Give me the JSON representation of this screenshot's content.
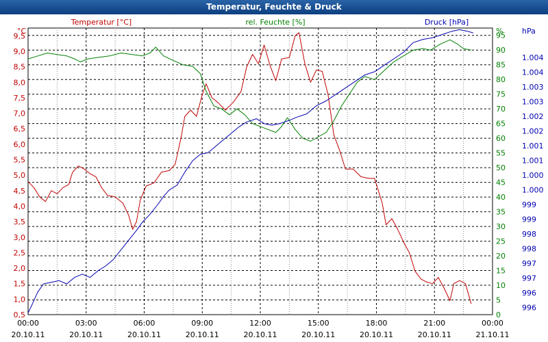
{
  "window": {
    "title": "Temperatur, Feuchte & Druck"
  },
  "chart_data": {
    "type": "line",
    "title": "Temperatur, Feuchte & Druck",
    "colors": {
      "temperature": "#c00000",
      "humidity": "#008000",
      "pressure": "#0000b0"
    },
    "x_ticks": [
      {
        "time": "00:00",
        "date": "20.10.11"
      },
      {
        "time": "03:00",
        "date": "20.10.11"
      },
      {
        "time": "06:00",
        "date": "20.10.11"
      },
      {
        "time": "09:00",
        "date": "20.10.11"
      },
      {
        "time": "12:00",
        "date": "20.10.11"
      },
      {
        "time": "15:00",
        "date": "20.10.11"
      },
      {
        "time": "18:00",
        "date": "20.10.11"
      },
      {
        "time": "21:00",
        "date": "20.10.11"
      },
      {
        "time": "00:00",
        "date": "21.10.11"
      }
    ],
    "xlim_hours": [
      0,
      24
    ],
    "axes": {
      "temperature": {
        "unit": "°C",
        "legend": "Temperatur [°C]",
        "ylim": [
          0.5,
          9.75
        ],
        "ticks": [
          "0,5",
          "1,0",
          "1,5",
          "2,0",
          "2,5",
          "3,0",
          "3,5",
          "4,0",
          "4,5",
          "5,0",
          "5,5",
          "6,0",
          "6,5",
          "7,0",
          "7,5",
          "8,0",
          "8,5",
          "9,0",
          "9,5"
        ]
      },
      "humidity": {
        "unit": "%",
        "legend": "rel. Feuchte [%]",
        "ylim": [
          0,
          97.5
        ],
        "ticks": [
          "0",
          "5",
          "10",
          "15",
          "20",
          "25",
          "30",
          "35",
          "40",
          "45",
          "50",
          "55",
          "60",
          "65",
          "70",
          "75",
          "80",
          "85",
          "90",
          "95"
        ]
      },
      "pressure": {
        "unit": "hPa",
        "legend": "Druck [hPa]",
        "ylim": [
          995.9,
          1004.75
        ],
        "ticks": [
          "996",
          "996",
          "997",
          "997",
          "998",
          "998",
          "999",
          "999",
          "1.000",
          "1.000",
          "1.001",
          "1.001",
          "1.002",
          "1.002",
          "1.003",
          "1.003",
          "1.004",
          "1.004"
        ]
      }
    },
    "series": [
      {
        "name": "Temperatur",
        "axis": "temperature",
        "color": "#c00000",
        "points": [
          [
            0,
            4.8
          ],
          [
            0.3,
            4.6
          ],
          [
            0.6,
            4.3
          ],
          [
            0.9,
            4.15
          ],
          [
            1.2,
            4.5
          ],
          [
            1.5,
            4.4
          ],
          [
            1.8,
            4.6
          ],
          [
            2.1,
            4.7
          ],
          [
            2.3,
            5.1
          ],
          [
            2.6,
            5.3
          ],
          [
            2.9,
            5.2
          ],
          [
            3.2,
            5.05
          ],
          [
            3.5,
            4.95
          ],
          [
            3.8,
            4.6
          ],
          [
            4.1,
            4.35
          ],
          [
            4.5,
            4.3
          ],
          [
            4.9,
            4.1
          ],
          [
            5.2,
            3.7
          ],
          [
            5.4,
            3.25
          ],
          [
            5.6,
            3.5
          ],
          [
            5.8,
            4.2
          ],
          [
            6.1,
            4.65
          ],
          [
            6.5,
            4.75
          ],
          [
            6.9,
            5.1
          ],
          [
            7.3,
            5.15
          ],
          [
            7.6,
            5.35
          ],
          [
            7.9,
            6.2
          ],
          [
            8.1,
            6.9
          ],
          [
            8.4,
            7.1
          ],
          [
            8.7,
            6.9
          ],
          [
            9.0,
            7.6
          ],
          [
            9.2,
            7.95
          ],
          [
            9.5,
            7.5
          ],
          [
            9.8,
            7.35
          ],
          [
            10.2,
            7.1
          ],
          [
            10.6,
            7.35
          ],
          [
            11.0,
            7.7
          ],
          [
            11.3,
            8.5
          ],
          [
            11.6,
            8.9
          ],
          [
            11.9,
            8.6
          ],
          [
            12.2,
            9.2
          ],
          [
            12.5,
            8.55
          ],
          [
            12.8,
            8.05
          ],
          [
            13.1,
            8.75
          ],
          [
            13.5,
            8.8
          ],
          [
            13.8,
            9.5
          ],
          [
            14.0,
            9.6
          ],
          [
            14.3,
            8.6
          ],
          [
            14.6,
            8.0
          ],
          [
            14.9,
            8.4
          ],
          [
            15.2,
            8.35
          ],
          [
            15.5,
            7.6
          ],
          [
            15.8,
            6.3
          ],
          [
            16.1,
            5.8
          ],
          [
            16.4,
            5.2
          ],
          [
            16.8,
            5.2
          ],
          [
            17.2,
            4.95
          ],
          [
            17.6,
            4.9
          ],
          [
            17.9,
            4.9
          ],
          [
            18.3,
            4.1
          ],
          [
            18.5,
            3.4
          ],
          [
            18.8,
            3.6
          ],
          [
            19.1,
            3.25
          ],
          [
            19.4,
            2.85
          ],
          [
            19.7,
            2.5
          ],
          [
            20.0,
            1.9
          ],
          [
            20.3,
            1.65
          ],
          [
            20.6,
            1.55
          ],
          [
            20.9,
            1.5
          ],
          [
            21.2,
            1.7
          ],
          [
            21.5,
            1.35
          ],
          [
            21.8,
            0.95
          ],
          [
            22.0,
            1.5
          ],
          [
            22.3,
            1.6
          ],
          [
            22.6,
            1.5
          ],
          [
            22.9,
            0.85
          ]
        ]
      },
      {
        "name": "rel. Feuchte",
        "axis": "humidity",
        "color": "#008000",
        "points": [
          [
            0,
            87
          ],
          [
            0.5,
            88
          ],
          [
            1.0,
            89
          ],
          [
            1.5,
            88.5
          ],
          [
            2.0,
            88
          ],
          [
            2.4,
            87
          ],
          [
            2.7,
            86
          ],
          [
            3.1,
            87
          ],
          [
            3.6,
            87.5
          ],
          [
            4.2,
            88
          ],
          [
            4.8,
            89
          ],
          [
            5.4,
            88.5
          ],
          [
            5.9,
            88
          ],
          [
            6.3,
            89
          ],
          [
            6.6,
            91
          ],
          [
            7.0,
            88
          ],
          [
            7.5,
            86.5
          ],
          [
            8.0,
            85
          ],
          [
            8.5,
            84.5
          ],
          [
            8.9,
            82
          ],
          [
            9.2,
            76
          ],
          [
            9.6,
            71
          ],
          [
            10.0,
            70
          ],
          [
            10.4,
            68
          ],
          [
            10.8,
            70
          ],
          [
            11.2,
            68
          ],
          [
            11.6,
            65
          ],
          [
            12.0,
            64
          ],
          [
            12.4,
            63
          ],
          [
            12.8,
            62
          ],
          [
            13.1,
            64
          ],
          [
            13.4,
            67
          ],
          [
            13.8,
            63
          ],
          [
            14.2,
            60
          ],
          [
            14.6,
            59
          ],
          [
            15.0,
            60.5
          ],
          [
            15.4,
            62
          ],
          [
            15.8,
            66
          ],
          [
            16.2,
            71
          ],
          [
            16.6,
            75
          ],
          [
            17.0,
            79
          ],
          [
            17.4,
            81
          ],
          [
            17.9,
            80
          ],
          [
            18.4,
            83
          ],
          [
            18.9,
            86
          ],
          [
            19.4,
            88
          ],
          [
            19.9,
            90
          ],
          [
            20.4,
            90.5
          ],
          [
            20.8,
            90
          ],
          [
            21.3,
            92
          ],
          [
            21.8,
            93.5
          ],
          [
            22.2,
            92
          ],
          [
            22.5,
            90.5
          ],
          [
            22.9,
            90
          ]
        ]
      },
      {
        "name": "Druck",
        "axis": "pressure",
        "color": "#0000b0",
        "points": [
          [
            0,
            995.95
          ],
          [
            0.2,
            996.2
          ],
          [
            0.5,
            996.6
          ],
          [
            0.8,
            996.85
          ],
          [
            1.2,
            996.9
          ],
          [
            1.6,
            996.95
          ],
          [
            2.0,
            996.85
          ],
          [
            2.4,
            997.05
          ],
          [
            2.8,
            997.15
          ],
          [
            3.2,
            997.05
          ],
          [
            3.6,
            997.25
          ],
          [
            4.0,
            997.4
          ],
          [
            4.4,
            997.6
          ],
          [
            4.8,
            997.9
          ],
          [
            5.2,
            998.2
          ],
          [
            5.6,
            998.5
          ],
          [
            5.9,
            998.75
          ],
          [
            6.3,
            999.0
          ],
          [
            6.7,
            999.3
          ],
          [
            7.0,
            999.55
          ],
          [
            7.3,
            999.75
          ],
          [
            7.7,
            999.9
          ],
          [
            8.1,
            1000.3
          ],
          [
            8.5,
            1000.65
          ],
          [
            8.9,
            1000.85
          ],
          [
            9.3,
            1000.9
          ],
          [
            9.7,
            1001.1
          ],
          [
            10.1,
            1001.3
          ],
          [
            10.5,
            1001.5
          ],
          [
            10.9,
            1001.7
          ],
          [
            11.3,
            1001.85
          ],
          [
            11.8,
            1001.95
          ],
          [
            12.2,
            1001.8
          ],
          [
            12.6,
            1001.75
          ],
          [
            13.0,
            1001.8
          ],
          [
            13.5,
            1001.9
          ],
          [
            13.9,
            1002.0
          ],
          [
            14.4,
            1002.1
          ],
          [
            14.9,
            1002.35
          ],
          [
            15.4,
            1002.5
          ],
          [
            15.9,
            1002.7
          ],
          [
            16.4,
            1002.9
          ],
          [
            16.9,
            1003.1
          ],
          [
            17.4,
            1003.3
          ],
          [
            17.9,
            1003.4
          ],
          [
            18.4,
            1003.6
          ],
          [
            18.9,
            1003.8
          ],
          [
            19.4,
            1004.0
          ],
          [
            19.9,
            1004.3
          ],
          [
            20.4,
            1004.4
          ],
          [
            20.9,
            1004.45
          ],
          [
            21.4,
            1004.55
          ],
          [
            21.9,
            1004.65
          ],
          [
            22.3,
            1004.7
          ],
          [
            22.7,
            1004.65
          ],
          [
            23.0,
            1004.6
          ]
        ]
      }
    ]
  }
}
